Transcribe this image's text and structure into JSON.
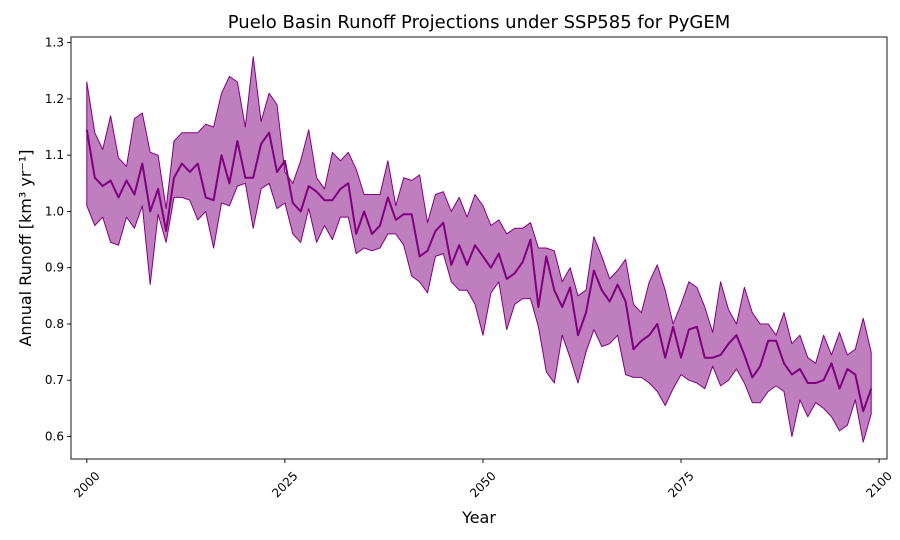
{
  "chart_data": {
    "type": "line",
    "title": "Puelo Basin Runoff Projections under SSP585 for PyGEM",
    "xlabel": "Year",
    "ylabel": "Annual Runoff [km³ yr⁻¹]",
    "xlim": [
      1998,
      2101
    ],
    "ylim": [
      0.56,
      1.31
    ],
    "xticks": [
      2000,
      2025,
      2050,
      2075,
      2100
    ],
    "yticks": [
      0.6,
      0.7,
      0.8,
      0.9,
      1.0,
      1.1,
      1.2,
      1.3
    ],
    "ytick_labels": [
      "0.6",
      "0.7",
      "0.8",
      "0.9",
      "1.0",
      "1.1",
      "1.2",
      "1.3"
    ],
    "grid": false,
    "colors": {
      "line": "#800080",
      "band": "#800080"
    },
    "series": [
      {
        "kind": "line",
        "x": [
          2000,
          2001,
          2002,
          2003,
          2004,
          2005,
          2006,
          2007,
          2008,
          2009,
          2010,
          2011,
          2012,
          2013,
          2014,
          2015,
          2016,
          2017,
          2018,
          2019,
          2020,
          2021,
          2022,
          2023,
          2024,
          2025,
          2026,
          2027,
          2028,
          2029,
          2030,
          2031,
          2032,
          2033,
          2034,
          2035,
          2036,
          2037,
          2038,
          2039,
          2040,
          2041,
          2042,
          2043,
          2044,
          2045,
          2046,
          2047,
          2048,
          2049,
          2050,
          2051,
          2052,
          2053,
          2054,
          2055,
          2056,
          2057,
          2058,
          2059,
          2060,
          2061,
          2062,
          2063,
          2064,
          2065,
          2066,
          2067,
          2068,
          2069,
          2070,
          2071,
          2072,
          2073,
          2074,
          2075,
          2076,
          2077,
          2078,
          2079,
          2080,
          2081,
          2082,
          2083,
          2084,
          2085,
          2086,
          2087,
          2088,
          2089,
          2090,
          2091,
          2092,
          2093,
          2094,
          2095,
          2096,
          2097,
          2098,
          2099
        ],
        "values": [
          1.145,
          1.06,
          1.045,
          1.055,
          1.025,
          1.055,
          1.03,
          1.085,
          1.0,
          1.04,
          0.965,
          1.06,
          1.085,
          1.07,
          1.085,
          1.025,
          1.02,
          1.1,
          1.05,
          1.125,
          1.06,
          1.06,
          1.12,
          1.14,
          1.07,
          1.09,
          1.015,
          1.0,
          1.045,
          1.035,
          1.02,
          1.02,
          1.04,
          1.05,
          0.96,
          1.0,
          0.96,
          0.975,
          1.025,
          0.985,
          0.995,
          0.995,
          0.92,
          0.93,
          0.965,
          0.98,
          0.905,
          0.94,
          0.905,
          0.94,
          0.92,
          0.9,
          0.925,
          0.88,
          0.89,
          0.91,
          0.95,
          0.83,
          0.92,
          0.86,
          0.83,
          0.865,
          0.78,
          0.82,
          0.895,
          0.86,
          0.84,
          0.87,
          0.84,
          0.755,
          0.77,
          0.78,
          0.8,
          0.74,
          0.795,
          0.74,
          0.79,
          0.795,
          0.74,
          0.74,
          0.745,
          0.765,
          0.78,
          0.745,
          0.705,
          0.725,
          0.77,
          0.77,
          0.73,
          0.71,
          0.72,
          0.695,
          0.695,
          0.7,
          0.73,
          0.685,
          0.72,
          0.71,
          0.645,
          0.685
        ]
      },
      {
        "kind": "band",
        "upper": [
          1.23,
          1.14,
          1.11,
          1.17,
          1.095,
          1.08,
          1.165,
          1.175,
          1.105,
          1.1,
          1.005,
          1.125,
          1.14,
          1.14,
          1.14,
          1.155,
          1.15,
          1.21,
          1.24,
          1.23,
          1.15,
          1.275,
          1.16,
          1.21,
          1.19,
          1.07,
          1.05,
          1.09,
          1.145,
          1.06,
          1.04,
          1.105,
          1.09,
          1.105,
          1.075,
          1.03,
          1.03,
          1.03,
          1.09,
          1.01,
          1.06,
          1.055,
          1.065,
          0.98,
          1.03,
          1.035,
          1.0,
          1.025,
          0.99,
          1.03,
          1.01,
          0.975,
          0.985,
          0.96,
          0.97,
          0.97,
          0.98,
          0.935,
          0.935,
          0.93,
          0.875,
          0.9,
          0.85,
          0.86,
          0.955,
          0.92,
          0.88,
          0.895,
          0.915,
          0.835,
          0.82,
          0.875,
          0.905,
          0.86,
          0.8,
          0.835,
          0.875,
          0.865,
          0.83,
          0.785,
          0.875,
          0.825,
          0.8,
          0.865,
          0.82,
          0.8,
          0.8,
          0.78,
          0.82,
          0.765,
          0.78,
          0.74,
          0.73,
          0.78,
          0.745,
          0.785,
          0.745,
          0.755,
          0.81,
          0.75
        ],
        "lower": [
          1.01,
          0.975,
          0.99,
          0.945,
          0.94,
          0.99,
          0.97,
          1.01,
          0.87,
          0.995,
          0.945,
          1.025,
          1.025,
          1.02,
          0.985,
          1.0,
          0.935,
          1.015,
          1.01,
          1.045,
          1.05,
          0.97,
          1.04,
          1.05,
          1.005,
          1.015,
          0.96,
          0.945,
          1.005,
          0.945,
          0.975,
          0.95,
          0.99,
          0.99,
          0.925,
          0.935,
          0.93,
          0.935,
          0.96,
          0.96,
          0.94,
          0.885,
          0.875,
          0.855,
          0.92,
          0.925,
          0.875,
          0.86,
          0.86,
          0.835,
          0.78,
          0.855,
          0.875,
          0.79,
          0.835,
          0.845,
          0.845,
          0.795,
          0.715,
          0.695,
          0.78,
          0.74,
          0.695,
          0.75,
          0.79,
          0.76,
          0.765,
          0.78,
          0.71,
          0.705,
          0.705,
          0.695,
          0.68,
          0.655,
          0.685,
          0.71,
          0.7,
          0.695,
          0.685,
          0.725,
          0.69,
          0.7,
          0.72,
          0.695,
          0.66,
          0.66,
          0.68,
          0.69,
          0.68,
          0.6,
          0.665,
          0.635,
          0.66,
          0.65,
          0.635,
          0.61,
          0.62,
          0.665,
          0.59,
          0.64
        ]
      }
    ]
  }
}
